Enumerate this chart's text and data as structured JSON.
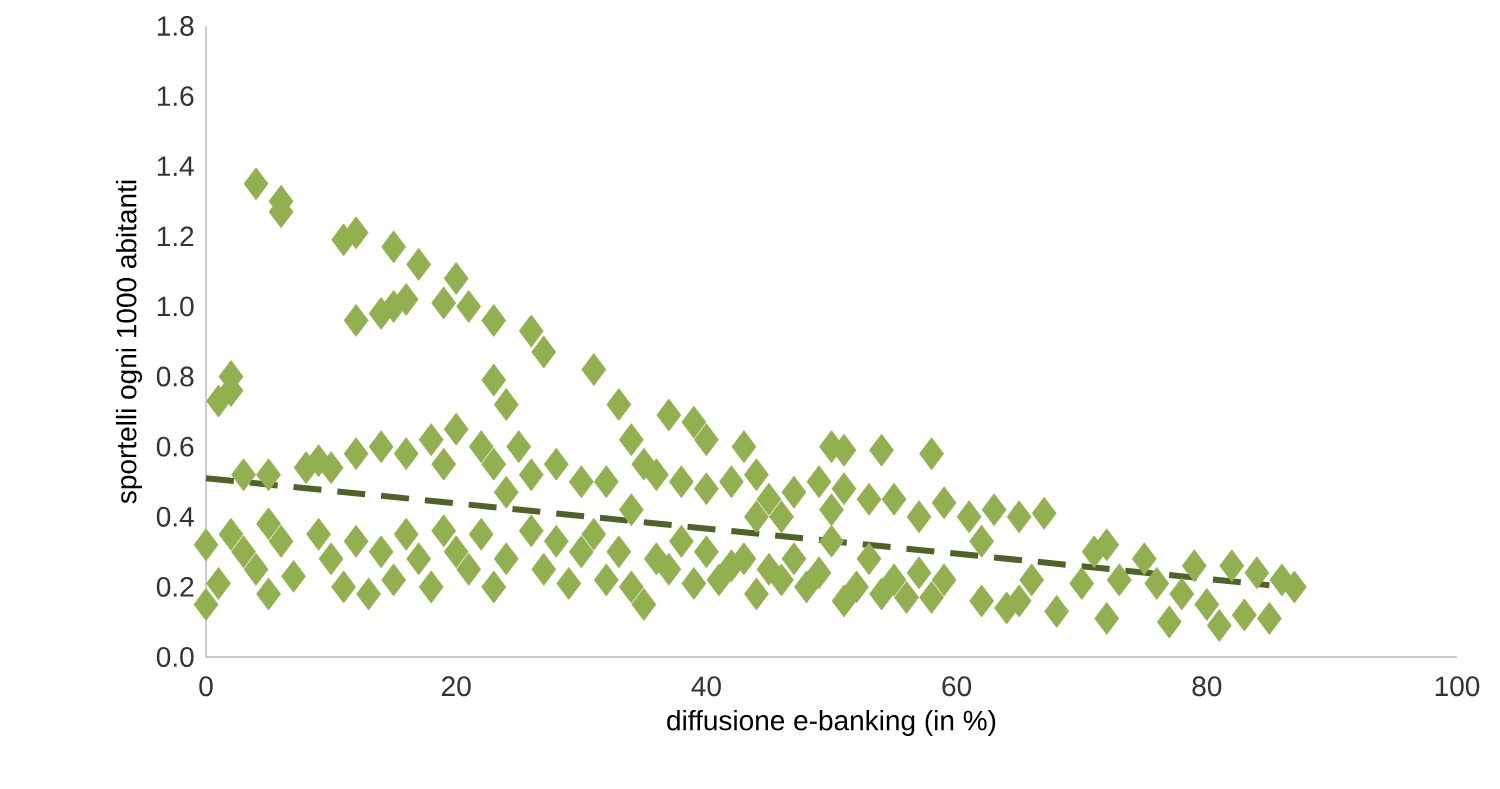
{
  "chart_data": {
    "type": "scatter",
    "xlabel": "diffusione e-banking (in %)",
    "ylabel": "sportelli ogni 1000 abitanti",
    "xlim": [
      0,
      100
    ],
    "ylim": [
      0,
      1.8
    ],
    "xticks": [
      0,
      20,
      40,
      60,
      80,
      100
    ],
    "yticks": [
      {
        "value": 0,
        "label": "0.0"
      },
      {
        "value": 0.2,
        "label": "0.2"
      },
      {
        "value": 0.4,
        "label": "0.4"
      },
      {
        "value": 0.6,
        "label": "0.6"
      },
      {
        "value": 0.8,
        "label": "0.8"
      },
      {
        "value": 1.0,
        "label": "1.0"
      },
      {
        "value": 1.2,
        "label": "1.2"
      },
      {
        "value": 1.4,
        "label": "1.4"
      },
      {
        "value": 1.6,
        "label": "1.6"
      },
      {
        "value": 1.8,
        "label": "1.8"
      }
    ],
    "series": [
      {
        "marker": "diamond",
        "color": "#92b050",
        "x": [
          4,
          6,
          6,
          11,
          12,
          15,
          17,
          20,
          12,
          14,
          15,
          16,
          19,
          21,
          23,
          26,
          27,
          31,
          33,
          23,
          24,
          1,
          2,
          2,
          37,
          39,
          40,
          34,
          43,
          50,
          51,
          54,
          58,
          3,
          5,
          8,
          9,
          10,
          12,
          14,
          16,
          18,
          19,
          20,
          22,
          23,
          25,
          26,
          28,
          30,
          32,
          35,
          36,
          38,
          40,
          42,
          44,
          45,
          47,
          49,
          51,
          53,
          55,
          57,
          59,
          61,
          63,
          65,
          67,
          24,
          34,
          44,
          46,
          50,
          0,
          0,
          1,
          2,
          3,
          4,
          5,
          5,
          6,
          7,
          9,
          10,
          11,
          12,
          13,
          14,
          15,
          16,
          17,
          18,
          19,
          20,
          21,
          22,
          23,
          24,
          26,
          27,
          28,
          29,
          30,
          31,
          32,
          33,
          34,
          35,
          36,
          37,
          38,
          39,
          40,
          41,
          42,
          43,
          44,
          45,
          46,
          47,
          48,
          49,
          50,
          51,
          52,
          53,
          54,
          55,
          56,
          57,
          58,
          59,
          62,
          62,
          64,
          65,
          66,
          68,
          70,
          71,
          72,
          72,
          73,
          75,
          76,
          77,
          78,
          79,
          80,
          81,
          82,
          83,
          84,
          85,
          86,
          87
        ],
        "values": [
          1.35,
          1.3,
          1.27,
          1.19,
          1.21,
          1.17,
          1.12,
          1.08,
          0.96,
          0.98,
          1.0,
          1.02,
          1.01,
          1.0,
          0.96,
          0.93,
          0.87,
          0.82,
          0.72,
          0.79,
          0.72,
          0.73,
          0.76,
          0.8,
          0.69,
          0.67,
          0.62,
          0.62,
          0.6,
          0.6,
          0.59,
          0.59,
          0.58,
          0.52,
          0.52,
          0.54,
          0.56,
          0.54,
          0.58,
          0.6,
          0.58,
          0.62,
          0.55,
          0.65,
          0.6,
          0.55,
          0.6,
          0.52,
          0.55,
          0.5,
          0.5,
          0.55,
          0.52,
          0.5,
          0.48,
          0.5,
          0.52,
          0.45,
          0.47,
          0.5,
          0.48,
          0.45,
          0.45,
          0.4,
          0.44,
          0.4,
          0.42,
          0.4,
          0.41,
          0.47,
          0.42,
          0.4,
          0.4,
          0.42,
          0.15,
          0.32,
          0.21,
          0.35,
          0.3,
          0.25,
          0.18,
          0.38,
          0.33,
          0.23,
          0.35,
          0.28,
          0.2,
          0.33,
          0.18,
          0.3,
          0.22,
          0.35,
          0.28,
          0.2,
          0.36,
          0.3,
          0.25,
          0.35,
          0.2,
          0.28,
          0.36,
          0.25,
          0.33,
          0.21,
          0.3,
          0.35,
          0.22,
          0.3,
          0.2,
          0.15,
          0.28,
          0.25,
          0.33,
          0.21,
          0.3,
          0.22,
          0.26,
          0.28,
          0.18,
          0.25,
          0.22,
          0.28,
          0.2,
          0.24,
          0.33,
          0.16,
          0.2,
          0.28,
          0.18,
          0.22,
          0.17,
          0.24,
          0.17,
          0.22,
          0.16,
          0.33,
          0.14,
          0.16,
          0.22,
          0.13,
          0.21,
          0.3,
          0.32,
          0.11,
          0.22,
          0.28,
          0.21,
          0.1,
          0.18,
          0.26,
          0.15,
          0.09,
          0.26,
          0.12,
          0.24,
          0.11,
          0.22,
          0.2
        ]
      },
      {
        "type": "line",
        "marker": "none",
        "line_style": "dashed",
        "color": "#4f6228",
        "x": [
          0,
          85
        ],
        "values": [
          0.51,
          0.205
        ]
      }
    ]
  }
}
